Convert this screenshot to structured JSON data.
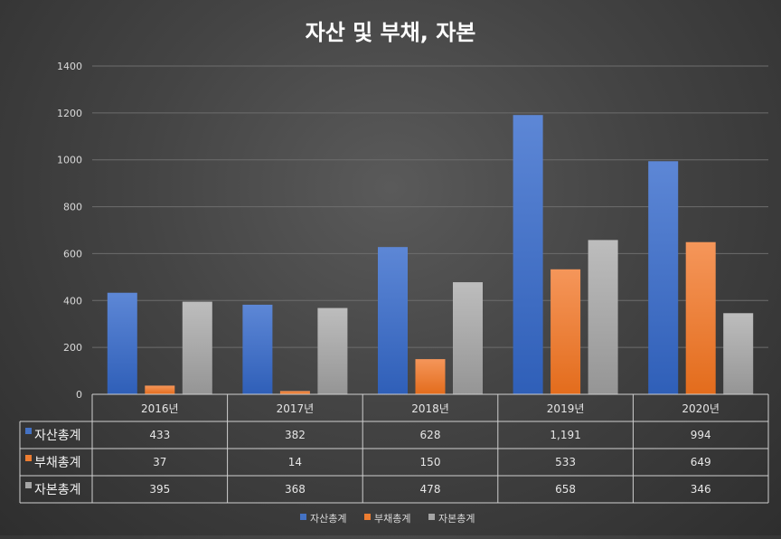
{
  "chart_data": {
    "type": "bar",
    "title": "자산 및 부채, 자본",
    "categories": [
      "2016년",
      "2017년",
      "2018년",
      "2019년",
      "2020년"
    ],
    "yticks": [
      "0",
      "200",
      "400",
      "600",
      "800",
      "1000",
      "1200",
      "1400"
    ],
    "ylim": [
      0,
      1400
    ],
    "grid": true,
    "legend_position": "bottom",
    "data_table": true,
    "series": [
      {
        "name": "자산총계",
        "color": "#4472c4",
        "values": [
          433,
          382,
          628,
          1191,
          994
        ],
        "labels": [
          "433",
          "382",
          "628",
          "1,191",
          "994"
        ]
      },
      {
        "name": "부채총계",
        "color": "#ed7d31",
        "values": [
          37,
          14,
          150,
          533,
          649
        ],
        "labels": [
          "37",
          "14",
          "150",
          "533",
          "649"
        ]
      },
      {
        "name": "자본총계",
        "color": "#a5a5a5",
        "values": [
          395,
          368,
          478,
          658,
          346
        ],
        "labels": [
          "395",
          "368",
          "478",
          "658",
          "346"
        ]
      }
    ]
  }
}
